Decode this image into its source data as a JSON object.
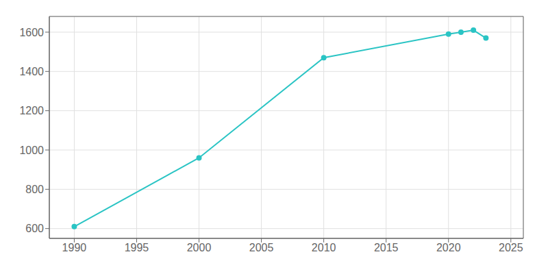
{
  "chart_data": {
    "type": "line",
    "x": [
      1990,
      2000,
      2010,
      2020,
      2021,
      2022,
      2023
    ],
    "values": [
      610,
      960,
      1470,
      1590,
      1600,
      1610,
      1570
    ],
    "color": "#2ac4c4",
    "marker": "circle",
    "xlim": [
      1988,
      2026
    ],
    "ylim": [
      550,
      1680
    ],
    "xticks": [
      1990,
      1995,
      2000,
      2005,
      2010,
      2015,
      2020,
      2025
    ],
    "yticks": [
      600,
      800,
      1000,
      1200,
      1400,
      1600
    ],
    "grid": true
  }
}
